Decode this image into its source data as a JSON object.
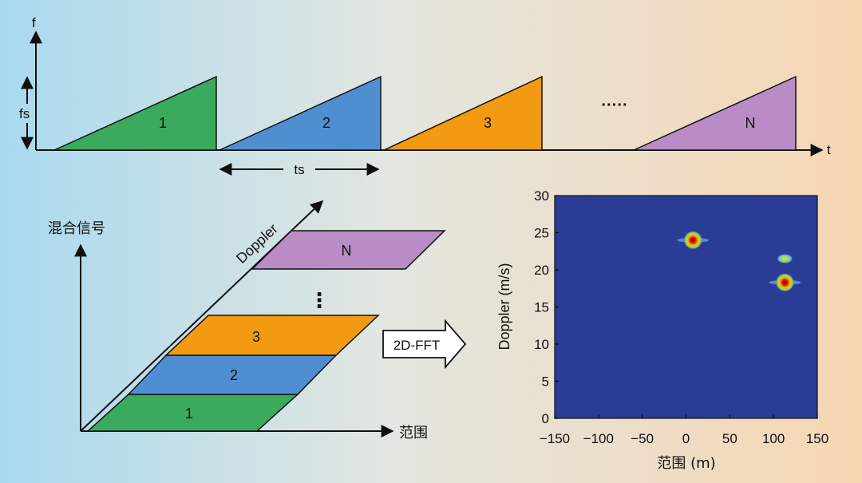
{
  "top_chart": {
    "y_axis_label": "f",
    "x_axis_label": "t",
    "sweep_height_label": "fs",
    "period_label": "ts",
    "ellipsis": "·····",
    "chirps": [
      {
        "label": "1",
        "color": "#3aaa5c"
      },
      {
        "label": "2",
        "color": "#4f8fd1"
      },
      {
        "label": "3",
        "color": "#f29a12"
      },
      {
        "label": "N",
        "color": "#b98cc6"
      }
    ]
  },
  "stack_diagram": {
    "vertical_axis_label": "混合信号",
    "horizontal_axis_label": "范围",
    "diagonal_axis_label": "Doppler",
    "ellipsis": "⋮",
    "layers": [
      {
        "label": "1",
        "color": "#3aaa5c"
      },
      {
        "label": "2",
        "color": "#4f8fd1"
      },
      {
        "label": "3",
        "color": "#f29a12"
      },
      {
        "label": "N",
        "color": "#b98cc6"
      }
    ]
  },
  "fft_arrow": {
    "label": "2D-FFT"
  },
  "chart_data": {
    "type": "heatmap",
    "xlabel": "范围 (m)",
    "ylabel": "Doppler (m/s)",
    "xlim": [
      -150,
      150
    ],
    "ylim": [
      0,
      30
    ],
    "x_ticks": [
      "−150",
      "−100",
      "−50",
      "0",
      "50",
      "100",
      "150"
    ],
    "y_ticks": [
      "0",
      "5",
      "10",
      "15",
      "20",
      "25",
      "30"
    ],
    "background_color": "#2b3c97",
    "targets": [
      {
        "x": 8,
        "y": 24,
        "intensity": "high"
      },
      {
        "x": 113,
        "y": 18.3,
        "intensity": "high"
      },
      {
        "x": 113,
        "y": 21.5,
        "intensity": "medium"
      }
    ]
  }
}
